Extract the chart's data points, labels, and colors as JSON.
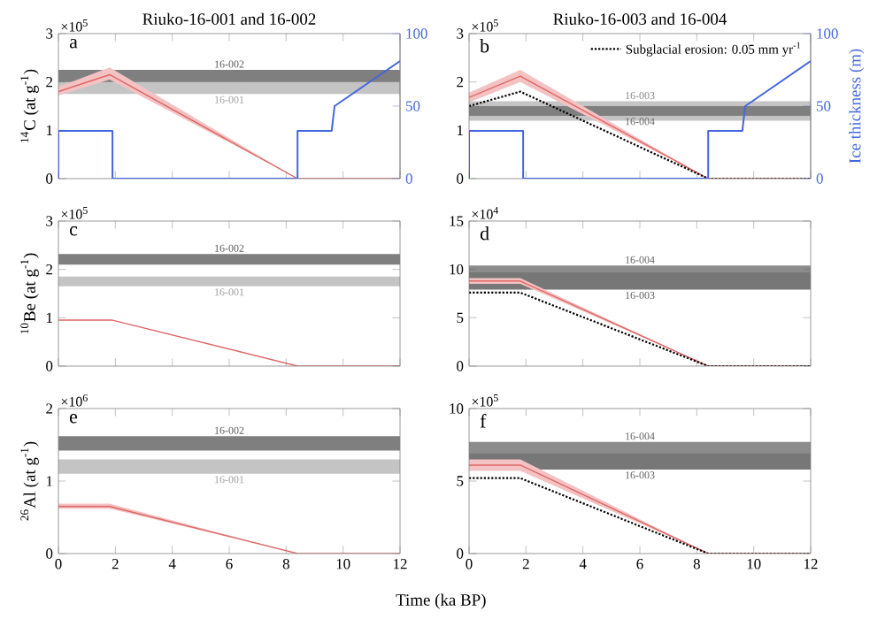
{
  "chart_data": [
    {
      "type": "line",
      "title": "Riuko-16-001 and 16-002",
      "ylabel": "$^{14}$C (at g$^{-1}$)",
      "annotations": [
        "a",
        "×10$^{5}$"
      ],
      "xlim": [
        0,
        12
      ],
      "xticks": [
        0,
        2,
        4,
        6,
        8,
        10,
        12
      ],
      "ylim": [
        0,
        3
      ],
      "yticks": [
        0,
        1,
        2,
        3
      ],
      "y2lim": [
        0,
        100
      ],
      "y2ticks": [
        0,
        50,
        100
      ],
      "tick_labels": "y",
      "bands": [
        {
          "axis": "y",
          "from": 1.9,
          "to": 2.25,
          "label": "16-002",
          "color": "#7f7f7f"
        },
        {
          "axis": "y",
          "from": 1.75,
          "to": 2.0,
          "label": "16-001",
          "color": "#c4c4c4"
        }
      ],
      "series": [
        {
          "color": "#e06666",
          "x": [
            0,
            1.8,
            8.4,
            12
          ],
          "values": [
            1.8,
            2.15,
            0,
            0
          ],
          "lower": [
            1.72,
            2.05,
            0,
            0
          ],
          "upper": [
            1.9,
            2.3,
            0,
            0
          ]
        },
        {
          "color": "#4466dd",
          "axis": "y2",
          "x": [
            0,
            0,
            1.9,
            1.9,
            8.4,
            8.4,
            9.6,
            9.7,
            12
          ],
          "values": [
            0,
            33,
            33,
            0,
            0,
            33,
            33,
            50,
            81
          ]
        }
      ]
    },
    {
      "type": "line",
      "title": "Riuko-16-003 and 16-004",
      "y2label": "Ice thickness (m)",
      "annotations": [
        "b",
        "×10$^{5}$"
      ],
      "xlim": [
        0,
        12
      ],
      "xticks": [
        0,
        2,
        4,
        6,
        8,
        10,
        12
      ],
      "ylim": [
        0,
        3
      ],
      "yticks": [
        0,
        1,
        2,
        3
      ],
      "y2lim": [
        0,
        100
      ],
      "y2ticks": [
        0,
        50,
        100
      ],
      "tick_labels": "y",
      "legend": "top right",
      "bands": [
        {
          "axis": "y",
          "from": 1.2,
          "to": 1.6,
          "label": "16-003",
          "color": "#c4c4c4"
        },
        {
          "axis": "y",
          "from": 1.3,
          "to": 1.5,
          "label": "16-004",
          "color": "#7f7f7f"
        }
      ],
      "series": [
        {
          "color": "#e06666",
          "x": [
            0,
            1.8,
            8.4,
            12
          ],
          "values": [
            1.68,
            2.12,
            0,
            0
          ],
          "lower": [
            1.58,
            2.0,
            0,
            0
          ],
          "upper": [
            1.78,
            2.25,
            0,
            0
          ]
        },
        {
          "name": "Subglacial erosion: 0.05 mm yr$^{-1}$",
          "color": "#000000",
          "line_style": "dotted",
          "x": [
            0,
            1.8,
            8.4,
            12
          ],
          "values": [
            1.5,
            1.8,
            0,
            0
          ]
        },
        {
          "color": "#4466dd",
          "axis": "y2",
          "x": [
            0,
            0,
            1.9,
            1.9,
            8.4,
            8.4,
            9.6,
            9.7,
            12
          ],
          "values": [
            0,
            33,
            33,
            0,
            0,
            33,
            33,
            50,
            81
          ]
        }
      ]
    },
    {
      "type": "line",
      "ylabel": "$^{10}$Be (at g$^{-1}$)",
      "annotations": [
        "c",
        "×10$^{5}$"
      ],
      "xlim": [
        0,
        12
      ],
      "xticks": [
        0,
        2,
        4,
        6,
        8,
        10,
        12
      ],
      "ylim": [
        0,
        3
      ],
      "yticks": [
        0,
        1,
        2,
        3
      ],
      "tick_labels": "y",
      "bands": [
        {
          "axis": "y",
          "from": 2.1,
          "to": 2.32,
          "label": "16-002",
          "color": "#7f7f7f"
        },
        {
          "axis": "y",
          "from": 1.65,
          "to": 1.85,
          "label": "16-001",
          "color": "#c4c4c4"
        }
      ],
      "series": [
        {
          "color": "#e06666",
          "x": [
            0,
            1.9,
            8.4,
            12
          ],
          "values": [
            0.95,
            0.95,
            0,
            0
          ]
        }
      ]
    },
    {
      "type": "line",
      "annotations": [
        "d",
        "×10$^{4}$"
      ],
      "xlim": [
        0,
        12
      ],
      "xticks": [
        0,
        2,
        4,
        6,
        8,
        10,
        12
      ],
      "ylim": [
        0,
        15
      ],
      "yticks": [
        0,
        5,
        10,
        15
      ],
      "tick_labels": "y",
      "bands": [
        {
          "axis": "y",
          "from": 8.0,
          "to": 10.4,
          "label": "16-004",
          "color": "#8c8c8c"
        },
        {
          "axis": "y",
          "from": 7.9,
          "to": 9.7,
          "label": "16-003",
          "color": "#777777"
        }
      ],
      "series": [
        {
          "color": "#e06666",
          "x": [
            0,
            1.8,
            8.4,
            12
          ],
          "values": [
            8.8,
            8.8,
            0,
            0
          ],
          "lower": [
            8.5,
            8.5,
            0,
            0
          ],
          "upper": [
            9.1,
            9.1,
            0,
            0
          ]
        },
        {
          "color": "#000000",
          "line_style": "dotted",
          "x": [
            0,
            1.8,
            8.4,
            12
          ],
          "values": [
            7.6,
            7.6,
            0,
            0
          ]
        }
      ]
    },
    {
      "type": "line",
      "ylabel": "$^{26}$Al (at g$^{-1}$)",
      "xlabel": "Time (ka BP)",
      "annotations": [
        "e",
        "×10$^{6}$"
      ],
      "xlim": [
        0,
        12
      ],
      "xticks": [
        0,
        2,
        4,
        6,
        8,
        10,
        12
      ],
      "ylim": [
        0,
        2
      ],
      "yticks": [
        0,
        1,
        2
      ],
      "bands": [
        {
          "axis": "y",
          "from": 1.42,
          "to": 1.62,
          "label": "16-002",
          "color": "#7f7f7f"
        },
        {
          "axis": "y",
          "from": 1.1,
          "to": 1.3,
          "label": "16-001",
          "color": "#c4c4c4"
        }
      ],
      "series": [
        {
          "color": "#e06666",
          "x": [
            0,
            1.8,
            8.4,
            12
          ],
          "values": [
            0.65,
            0.65,
            0,
            0
          ],
          "lower": [
            0.62,
            0.62,
            0,
            0
          ],
          "upper": [
            0.69,
            0.69,
            0,
            0
          ]
        }
      ]
    },
    {
      "type": "line",
      "annotations": [
        "f",
        "×10$^{5}$"
      ],
      "xlim": [
        0,
        12
      ],
      "xticks": [
        0,
        2,
        4,
        6,
        8,
        10,
        12
      ],
      "ylim": [
        0,
        10
      ],
      "yticks": [
        0,
        5,
        10
      ],
      "bands": [
        {
          "axis": "y",
          "from": 5.8,
          "to": 7.7,
          "label": "16-004",
          "color": "#8c8c8c"
        },
        {
          "axis": "y",
          "from": 5.8,
          "to": 6.9,
          "label": "16-003",
          "color": "#777777"
        }
      ],
      "series": [
        {
          "color": "#e06666",
          "x": [
            0,
            1.8,
            8.4,
            12
          ],
          "values": [
            6.1,
            6.1,
            0,
            0
          ],
          "lower": [
            5.7,
            5.7,
            0,
            0
          ],
          "upper": [
            6.5,
            6.5,
            0,
            0
          ]
        },
        {
          "color": "#000000",
          "line_style": "dotted",
          "x": [
            0,
            1.8,
            8.4,
            12
          ],
          "values": [
            5.2,
            5.2,
            0,
            0
          ]
        }
      ]
    }
  ]
}
